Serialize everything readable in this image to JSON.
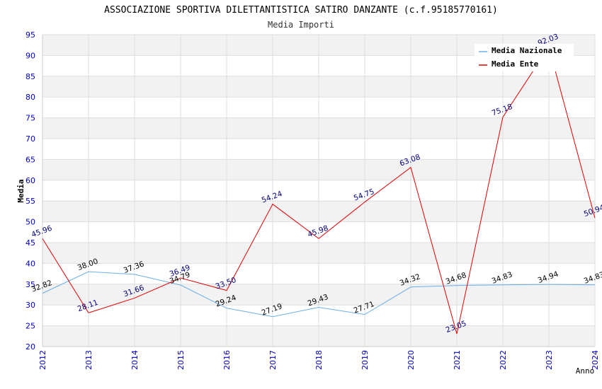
{
  "chart_data": {
    "type": "line",
    "title": "ASSOCIAZIONE SPORTIVA DILETTANTISTICA SATIRO DANZANTE (c.f.95185770161)",
    "subtitle": "Media Importi",
    "xlabel": "Anno",
    "ylabel": "Media",
    "categories": [
      "2012",
      "2013",
      "2014",
      "2015",
      "2016",
      "2017",
      "2018",
      "2019",
      "2020",
      "2021",
      "2022",
      "2023",
      "2024"
    ],
    "ylim": [
      20,
      95
    ],
    "yticks": [
      20,
      25,
      30,
      35,
      40,
      45,
      50,
      55,
      60,
      65,
      70,
      75,
      80,
      85,
      90,
      95
    ],
    "legend_position": "top-right",
    "series": [
      {
        "name": "Media Nazionale",
        "color": "#6aaee8",
        "label_color": "#000000",
        "values": [
          32.82,
          38.0,
          37.36,
          34.79,
          29.24,
          27.19,
          29.43,
          27.71,
          34.32,
          34.68,
          34.83,
          34.94,
          34.83
        ],
        "labels": [
          "32.82",
          "38.00",
          "37.36",
          "34.79",
          "29.24",
          "27.19",
          "29.43",
          "27.71",
          "34.32",
          "34.68",
          "34.83",
          "34.94",
          "34.83"
        ]
      },
      {
        "name": "Media Ente",
        "color": "#e00000",
        "label_color": "#000080",
        "values": [
          45.96,
          28.11,
          31.66,
          36.49,
          33.5,
          54.24,
          45.98,
          54.75,
          63.08,
          23.05,
          75.18,
          92.03,
          50.94
        ],
        "labels": [
          "45.96",
          "28.11",
          "31.66",
          "36.49",
          "33.50",
          "54.24",
          "45.98",
          "54.75",
          "63.08",
          "23.05",
          "75.18",
          "92.03",
          "50.94"
        ]
      }
    ]
  },
  "colors": {
    "tick_label": "#0000cc",
    "band": "#f2f2f2",
    "grid": "#dddddd"
  }
}
